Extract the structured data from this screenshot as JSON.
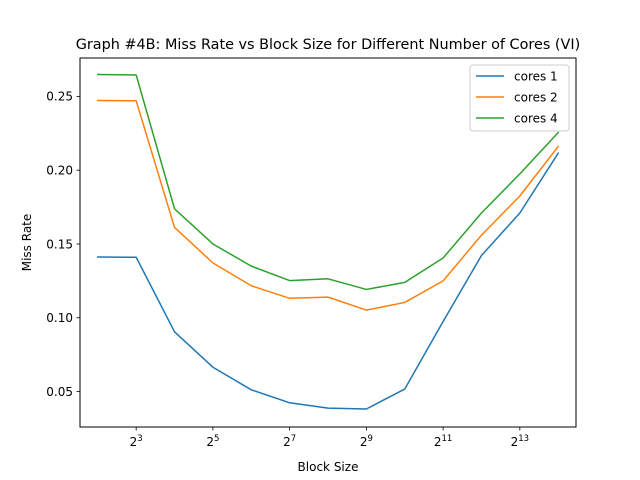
{
  "chart_data": {
    "type": "line",
    "title": "Graph #4B: Miss Rate vs Block Size for Different Number of Cores (VI)",
    "xlabel": "Block Size",
    "ylabel": "Miss Rate",
    "x_scale": "log2",
    "x": [
      4,
      8,
      16,
      32,
      64,
      128,
      256,
      512,
      1024,
      2048,
      4096,
      8192,
      16384
    ],
    "xlim": [
      2.9,
      22600
    ],
    "ylim": [
      0.026,
      0.276
    ],
    "xticks": [
      8,
      32,
      128,
      512,
      2048,
      8192
    ],
    "xtick_labels": [
      {
        "base": "2",
        "exp": "3"
      },
      {
        "base": "2",
        "exp": "5"
      },
      {
        "base": "2",
        "exp": "7"
      },
      {
        "base": "2",
        "exp": "9"
      },
      {
        "base": "2",
        "exp": "11"
      },
      {
        "base": "2",
        "exp": "13"
      }
    ],
    "yticks": [
      0.05,
      0.1,
      0.15,
      0.2,
      0.25
    ],
    "ytick_labels": [
      "0.05",
      "0.10",
      "0.15",
      "0.20",
      "0.25"
    ],
    "grid": false,
    "legend_position": "top-right",
    "series": [
      {
        "name": "cores 1",
        "color": "#1f77b4",
        "values": [
          0.1412,
          0.141,
          0.0905,
          0.0665,
          0.0512,
          0.0424,
          0.0388,
          0.0382,
          0.0517,
          0.0975,
          0.1422,
          0.171,
          0.2115
        ]
      },
      {
        "name": "cores 2",
        "color": "#ff7f0e",
        "values": [
          0.2472,
          0.247,
          0.1612,
          0.1372,
          0.1217,
          0.1132,
          0.114,
          0.1052,
          0.1104,
          0.125,
          0.156,
          0.1825,
          0.216
        ]
      },
      {
        "name": "cores 4",
        "color": "#2ca02c",
        "values": [
          0.2648,
          0.2645,
          0.1738,
          0.15,
          0.135,
          0.1252,
          0.1264,
          0.1192,
          0.124,
          0.1405,
          0.171,
          0.1975,
          0.2255
        ]
      }
    ]
  }
}
